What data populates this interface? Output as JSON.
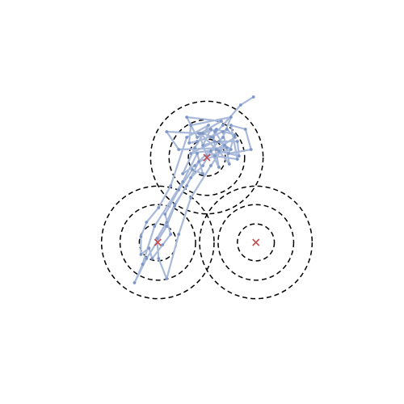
{
  "chart_data": {
    "type": "scatter",
    "title": "",
    "xlabel": "",
    "ylabel": "",
    "axes_visible": false,
    "grid": false,
    "xlim": [
      -1.95,
      1.95
    ],
    "ylim": [
      -1.85,
      2.05
    ],
    "colors": {
      "trajectory": "#a9b9d9",
      "trajectory_points": "#7f97c6",
      "centers": "#c44e52",
      "contours": "#000000"
    },
    "centers": [
      {
        "x": 0.0,
        "y": 0.7
      },
      {
        "x": -0.61,
        "y": -0.35
      },
      {
        "x": 0.61,
        "y": -0.35
      }
    ],
    "contour_radii": [
      0.23,
      0.47,
      0.7
    ],
    "trajectory": [
      {
        "x": 0.58,
        "y": 1.45
      },
      {
        "x": 0.42,
        "y": 1.35
      },
      {
        "x": 0.2,
        "y": 1.1
      },
      {
        "x": 0.05,
        "y": 0.95
      },
      {
        "x": 0.25,
        "y": 1.05
      },
      {
        "x": 0.35,
        "y": 0.95
      },
      {
        "x": 0.12,
        "y": 0.8
      },
      {
        "x": -0.08,
        "y": 1.0
      },
      {
        "x": 0.18,
        "y": 1.15
      },
      {
        "x": -0.25,
        "y": 1.2
      },
      {
        "x": -0.12,
        "y": 0.95
      },
      {
        "x": 0.05,
        "y": 1.05
      },
      {
        "x": -0.05,
        "y": 0.85
      },
      {
        "x": 0.1,
        "y": 0.9
      },
      {
        "x": -0.2,
        "y": 0.75
      },
      {
        "x": 0.25,
        "y": 0.82
      },
      {
        "x": -0.35,
        "y": 0.8
      },
      {
        "x": -0.5,
        "y": 1.02
      },
      {
        "x": -0.1,
        "y": 1.0
      },
      {
        "x": 0.0,
        "y": 0.72
      },
      {
        "x": 0.3,
        "y": 0.8
      },
      {
        "x": 0.15,
        "y": 0.9
      },
      {
        "x": 0.38,
        "y": 0.9
      },
      {
        "x": 0.4,
        "y": 0.72
      },
      {
        "x": 0.15,
        "y": 0.78
      },
      {
        "x": 0.28,
        "y": 0.62
      },
      {
        "x": 0.2,
        "y": 1.02
      },
      {
        "x": -0.12,
        "y": 0.9
      },
      {
        "x": -0.22,
        "y": 0.88
      },
      {
        "x": -0.2,
        "y": 1.1
      },
      {
        "x": 0.3,
        "y": 1.2
      },
      {
        "x": 0.2,
        "y": 0.95
      },
      {
        "x": -0.15,
        "y": 0.6
      },
      {
        "x": -0.3,
        "y": 0.5
      },
      {
        "x": -0.15,
        "y": 0.82
      },
      {
        "x": 0.02,
        "y": 1.1
      },
      {
        "x": -0.25,
        "y": 0.95
      },
      {
        "x": -0.45,
        "y": 0.35
      },
      {
        "x": -0.6,
        "y": 0.08
      },
      {
        "x": -0.75,
        "y": -0.1
      },
      {
        "x": -0.82,
        "y": -0.28
      },
      {
        "x": -0.82,
        "y": -0.5
      },
      {
        "x": -0.72,
        "y": -0.42
      },
      {
        "x": -0.68,
        "y": -0.55
      },
      {
        "x": -0.55,
        "y": -0.38
      },
      {
        "x": -0.45,
        "y": -0.25
      },
      {
        "x": -0.52,
        "y": 0.0
      },
      {
        "x": -0.35,
        "y": 0.3
      },
      {
        "x": -0.18,
        "y": 0.55
      },
      {
        "x": -0.05,
        "y": 0.5
      },
      {
        "x": -0.12,
        "y": 0.75
      },
      {
        "x": -0.3,
        "y": 0.4
      },
      {
        "x": -0.65,
        "y": -0.15
      },
      {
        "x": -0.8,
        "y": -0.62
      },
      {
        "x": -0.9,
        "y": -0.85
      },
      {
        "x": -0.75,
        "y": -0.55
      },
      {
        "x": -0.5,
        "y": -0.15
      },
      {
        "x": -0.4,
        "y": 0.1
      },
      {
        "x": -0.2,
        "y": 0.45
      },
      {
        "x": -0.05,
        "y": 0.6
      },
      {
        "x": 0.05,
        "y": 0.78
      },
      {
        "x": 0.15,
        "y": 0.58
      },
      {
        "x": 0.08,
        "y": 0.95
      },
      {
        "x": -0.05,
        "y": 1.0
      },
      {
        "x": 0.12,
        "y": 1.05
      },
      {
        "x": 0.35,
        "y": 0.98
      },
      {
        "x": 0.27,
        "y": 0.75
      },
      {
        "x": 0.55,
        "y": 0.8
      },
      {
        "x": 0.48,
        "y": 1.05
      },
      {
        "x": 0.3,
        "y": 1.1
      },
      {
        "x": 0.38,
        "y": 0.68
      },
      {
        "x": 0.1,
        "y": 0.72
      },
      {
        "x": -0.1,
        "y": 0.65
      },
      {
        "x": -0.25,
        "y": 0.35
      },
      {
        "x": -0.4,
        "y": 0.12
      },
      {
        "x": -0.5,
        "y": -0.1
      },
      {
        "x": -0.62,
        "y": -0.3
      },
      {
        "x": -0.6,
        "y": -0.55
      },
      {
        "x": -0.5,
        "y": -0.8
      },
      {
        "x": -0.35,
        "y": -0.25
      },
      {
        "x": -0.2,
        "y": 0.2
      },
      {
        "x": 0.05,
        "y": 0.6
      },
      {
        "x": 0.22,
        "y": 0.85
      },
      {
        "x": 0.1,
        "y": 1.02
      }
    ]
  }
}
